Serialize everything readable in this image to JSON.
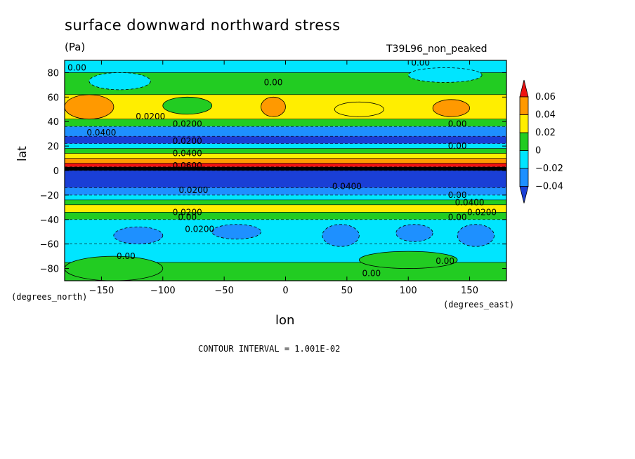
{
  "chart_data": {
    "type": "heatmap",
    "title": "surface downward northward stress",
    "units": "(Pa)",
    "run_label": "T39L96_non_peaked",
    "xlabel": "lon",
    "ylabel": "lat",
    "x_units": "(degrees_east)",
    "y_units": "(degrees_north)",
    "contour_interval": "CONTOUR INTERVAL = 1.001E-02",
    "xlim": [
      -180,
      180
    ],
    "ylim": [
      -90,
      90
    ],
    "x_ticks": [
      -150,
      -100,
      -50,
      0,
      50,
      100,
      150
    ],
    "x_tick_labels": [
      "−150",
      "−100",
      "−50",
      "0",
      "50",
      "100",
      "150"
    ],
    "y_ticks": [
      80,
      60,
      40,
      20,
      0,
      -20,
      -40,
      -60,
      -80
    ],
    "y_tick_labels": [
      "80",
      "60",
      "40",
      "20",
      "0",
      "−20",
      "−40",
      "−60",
      "−80"
    ],
    "colorbar": {
      "levels": [
        -0.04,
        -0.02,
        0,
        0.02,
        0.04,
        0.06
      ],
      "labels": [
        "−0.04",
        "−0.02",
        "0",
        "0.02",
        "0.04",
        "0.06"
      ],
      "colors": [
        "#1a3fd6",
        "#1e90ff",
        "#00e5ff",
        "#22cc22",
        "#ffee00",
        "#ff9900",
        "#ee1111"
      ]
    },
    "zonal_bands": [
      {
        "lat_from": 90,
        "lat_to": 80,
        "value": -0.01
      },
      {
        "lat_from": 80,
        "lat_to": 62,
        "value": 0.005
      },
      {
        "lat_from": 62,
        "lat_to": 42,
        "value": 0.025
      },
      {
        "lat_from": 42,
        "lat_to": 36,
        "value": 0.005
      },
      {
        "lat_from": 36,
        "lat_to": 28,
        "value": -0.025
      },
      {
        "lat_from": 28,
        "lat_to": 22,
        "value": -0.045
      },
      {
        "lat_from": 22,
        "lat_to": 18,
        "value": -0.01
      },
      {
        "lat_from": 18,
        "lat_to": 14,
        "value": 0.01
      },
      {
        "lat_from": 14,
        "lat_to": 10,
        "value": 0.03
      },
      {
        "lat_from": 10,
        "lat_to": 6,
        "value": 0.05
      },
      {
        "lat_from": 6,
        "lat_to": 3,
        "value": 0.07
      },
      {
        "lat_from": 3,
        "lat_to": 0,
        "value": -0.09
      },
      {
        "lat_from": 0,
        "lat_to": -14,
        "value": -0.045
      },
      {
        "lat_from": -14,
        "lat_to": -20,
        "value": -0.03
      },
      {
        "lat_from": -20,
        "lat_to": -24,
        "value": -0.01
      },
      {
        "lat_from": -24,
        "lat_to": -28,
        "value": 0.01
      },
      {
        "lat_from": -28,
        "lat_to": -34,
        "value": 0.03
      },
      {
        "lat_from": -34,
        "lat_to": -40,
        "value": 0.01
      },
      {
        "lat_from": -40,
        "lat_to": -60,
        "value": -0.01
      },
      {
        "lat_from": -60,
        "lat_to": -75,
        "value": -0.005
      },
      {
        "lat_from": -75,
        "lat_to": -90,
        "value": 0.005
      }
    ],
    "cells": [
      {
        "lon_from": -180,
        "lon_to": -140,
        "lat_from": 62,
        "lat_to": 42,
        "value": 0.045
      },
      {
        "lon_from": -20,
        "lon_to": 0,
        "lat_from": 60,
        "lat_to": 44,
        "value": 0.045
      },
      {
        "lon_from": 40,
        "lon_to": 80,
        "lat_from": 56,
        "lat_to": 44,
        "value": 0.035
      },
      {
        "lon_from": 120,
        "lon_to": 150,
        "lat_from": 58,
        "lat_to": 44,
        "value": 0.04
      },
      {
        "lon_from": -100,
        "lon_to": -60,
        "lat_from": 60,
        "lat_to": 46,
        "value": 0.005
      },
      {
        "lon_from": -160,
        "lon_to": -110,
        "lat_from": 80,
        "lat_to": 66,
        "value": -0.012
      },
      {
        "lon_from": 100,
        "lon_to": 160,
        "lat_from": 84,
        "lat_to": 72,
        "value": -0.012
      },
      {
        "lon_from": -140,
        "lon_to": -100,
        "lat_from": -46,
        "lat_to": -60,
        "value": -0.03
      },
      {
        "lon_from": -60,
        "lon_to": -20,
        "lat_from": -44,
        "lat_to": -56,
        "value": -0.03
      },
      {
        "lon_from": 30,
        "lon_to": 60,
        "lat_from": -44,
        "lat_to": -62,
        "value": -0.03
      },
      {
        "lon_from": 90,
        "lon_to": 120,
        "lat_from": -44,
        "lat_to": -58,
        "value": -0.03
      },
      {
        "lon_from": 140,
        "lon_to": 170,
        "lat_from": -44,
        "lat_to": -62,
        "value": -0.03
      },
      {
        "lon_from": 60,
        "lon_to": 140,
        "lat_from": -66,
        "lat_to": -80,
        "value": 0.005
      },
      {
        "lon_from": -180,
        "lon_to": -100,
        "lat_from": -70,
        "lat_to": -90,
        "value": 0.005
      }
    ],
    "contour_labels": [
      {
        "text": "0.00",
        "lon": -170,
        "lat": 84
      },
      {
        "text": "0.00",
        "lon": -10,
        "lat": 72
      },
      {
        "text": "0.00",
        "lon": 110,
        "lat": 88
      },
      {
        "text": "0.0200",
        "lon": -110,
        "lat": 44
      },
      {
        "text": "0.0400",
        "lon": -150,
        "lat": 31
      },
      {
        "text": "0.0200",
        "lon": -80,
        "lat": 38
      },
      {
        "text": "0.00",
        "lon": 140,
        "lat": 38
      },
      {
        "text": "0.00",
        "lon": 140,
        "lat": 20
      },
      {
        "text": "0.0400",
        "lon": -80,
        "lat": 14
      },
      {
        "text": "0.0200",
        "lon": -80,
        "lat": 24
      },
      {
        "text": "0.0600",
        "lon": -80,
        "lat": 4
      },
      {
        "text": "0.0200",
        "lon": -75,
        "lat": -16
      },
      {
        "text": "0.0400",
        "lon": 50,
        "lat": -13
      },
      {
        "text": "0.00",
        "lon": 140,
        "lat": -20
      },
      {
        "text": "0.0400",
        "lon": 150,
        "lat": -26
      },
      {
        "text": "0.0200",
        "lon": 160,
        "lat": -34
      },
      {
        "text": "0.00",
        "lon": 140,
        "lat": -38
      },
      {
        "text": "0.0200",
        "lon": -80,
        "lat": -34
      },
      {
        "text": "0.00",
        "lon": -80,
        "lat": -38
      },
      {
        "text": "0.0200",
        "lon": -70,
        "lat": -48
      },
      {
        "text": "0.00",
        "lon": -130,
        "lat": -70
      },
      {
        "text": "0.00",
        "lon": 130,
        "lat": -74
      },
      {
        "text": "0.00",
        "lon": 70,
        "lat": -84
      }
    ]
  }
}
